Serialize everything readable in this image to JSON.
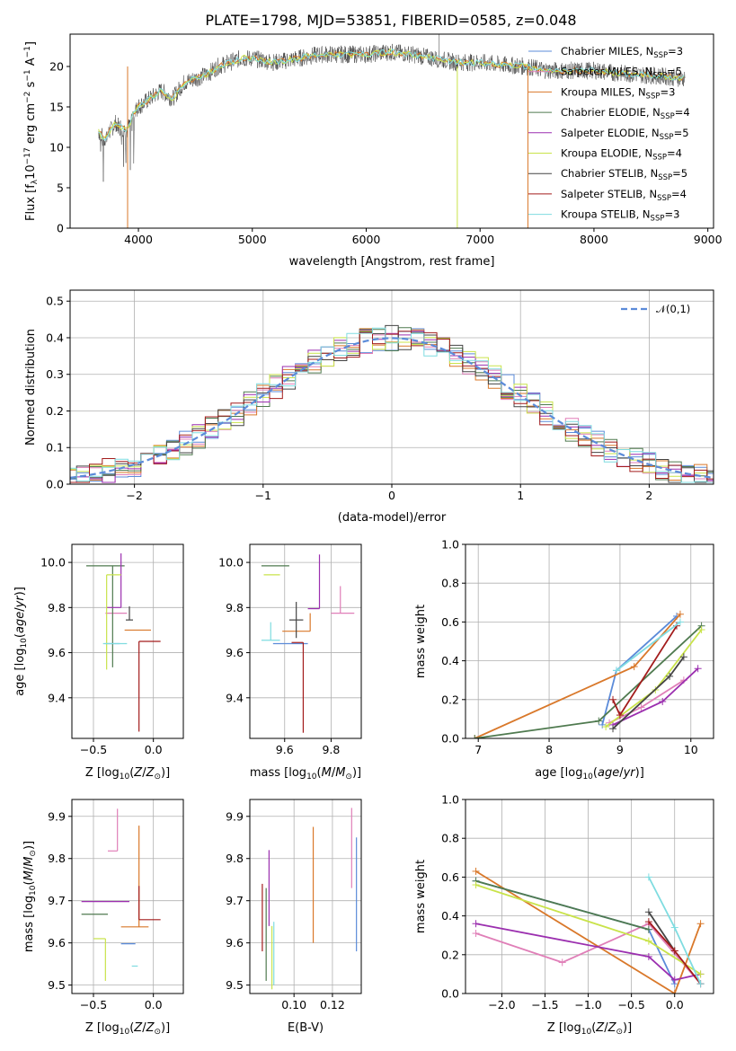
{
  "colors": [
    "#5b8bd9",
    "#e07fb8",
    "#d9782a",
    "#4f7a4f",
    "#9b2faf",
    "#c9e34a",
    "#444444",
    "#a31c1c",
    "#7fdce0"
  ],
  "legend_labels": [
    {
      "base": "Chabrier MILES, N",
      "sub": "SSP",
      "end": "=3"
    },
    {
      "base": "Salpeter MILES, N",
      "sub": "SSP",
      "end": "=5"
    },
    {
      "base": "Kroupa MILES, N",
      "sub": "SSP",
      "end": "=3"
    },
    {
      "base": "Chabrier ELODIE, N",
      "sub": "SSP",
      "end": "=4"
    },
    {
      "base": "Salpeter ELODIE, N",
      "sub": "SSP",
      "end": "=5"
    },
    {
      "base": "Kroupa ELODIE, N",
      "sub": "SSP",
      "end": "=4"
    },
    {
      "base": "Chabrier STELIB, N",
      "sub": "SSP",
      "end": "=5"
    },
    {
      "base": "Salpeter STELIB, N",
      "sub": "SSP",
      "end": "=4"
    },
    {
      "base": "Kroupa STELIB, N",
      "sub": "SSP",
      "end": "=3"
    }
  ],
  "chart_data": [
    {
      "type": "line",
      "title": "PLATE=1798, MJD=53851, FIBERID=0585, z=0.048",
      "xlabel": "wavelength [Angstrom, rest frame]",
      "ylabel": "Flux [fλ10⁻¹⁷ erg cm⁻² s⁻¹ A⁻¹]",
      "xlim": [
        3400,
        9050
      ],
      "ylim": [
        0,
        24
      ],
      "xticks": [
        4000,
        5000,
        6000,
        7000,
        8000,
        9000
      ],
      "yticks": [
        0,
        5,
        10,
        15,
        20
      ],
      "spectrum_envelope": {
        "x": [
          3650,
          3700,
          3800,
          3900,
          3950,
          4000,
          4100,
          4200,
          4300,
          4400,
          4500,
          4600,
          4700,
          4800,
          4900,
          5000,
          5200,
          5400,
          5600,
          5800,
          6000,
          6200,
          6400,
          6600,
          6800,
          7000,
          7200,
          7400,
          7600,
          7800,
          8000,
          8200,
          8400,
          8600,
          8800
        ],
        "y": [
          12,
          11,
          13,
          12,
          14,
          15,
          16,
          17,
          16,
          18,
          18.5,
          19,
          20,
          20.5,
          21,
          21,
          20.5,
          21,
          21.5,
          21.5,
          21.5,
          21.8,
          21.5,
          21,
          20.5,
          20.5,
          20.2,
          20,
          19.5,
          19.5,
          19.5,
          19.2,
          19,
          18.8,
          18.5
        ]
      },
      "legend_position": "upper-right"
    },
    {
      "type": "histogram",
      "xlabel": "(data-model)/error",
      "ylabel": "Normed distribution",
      "xlim": [
        -2.5,
        2.5
      ],
      "ylim": [
        0,
        0.53
      ],
      "xticks": [
        -2,
        -1,
        0,
        1,
        2
      ],
      "yticks": [
        0.0,
        0.1,
        0.2,
        0.3,
        0.4,
        0.5
      ],
      "reference_curve": {
        "name": "𝒩(0,1)",
        "mean": 0,
        "sigma": 1
      },
      "bin_width": 0.1,
      "legend_position": "upper-right"
    },
    {
      "type": "scatter",
      "xlabel": "Z [log10(Z/Z⊙)]",
      "ylabel": "age  [log10(age/yr)]",
      "xlim": [
        -0.68,
        0.25
      ],
      "ylim": [
        9.22,
        10.08
      ],
      "xticks": [
        -0.5,
        0.0
      ],
      "yticks": [
        9.4,
        9.6,
        9.8,
        10.0
      ],
      "points": [
        {
          "x": -0.28,
          "y": 9.64,
          "xerr": [
            0.12,
            0.0
          ],
          "yerr": [
            0.0,
            0.0
          ]
        },
        {
          "x": -0.26,
          "y": 9.775,
          "xerr": [
            0.12,
            0.08
          ],
          "yerr": [
            0.0,
            0.0
          ]
        },
        {
          "x": -0.14,
          "y": 9.7,
          "xerr": [
            0.1,
            0.12
          ],
          "yerr": [
            0.0,
            0.0
          ]
        },
        {
          "x": -0.34,
          "y": 9.985,
          "xerr": [
            0.22,
            0.0
          ],
          "yerr": [
            0.0,
            0.0
          ]
        },
        {
          "x": -0.27,
          "y": 9.8,
          "xerr": [
            0.12,
            0.0
          ],
          "yerr": [
            0.0,
            0.0
          ]
        },
        {
          "x": -0.27,
          "y": 9.945,
          "xerr": [
            0.12,
            0.1
          ],
          "yerr": [
            0.0,
            0.0
          ]
        },
        {
          "x": -0.18,
          "y": 9.745,
          "xerr": [
            0.03,
            0.03
          ],
          "yerr": [
            0.0,
            0.0
          ]
        },
        {
          "x": -0.12,
          "y": 9.65,
          "xerr": [
            0.0,
            0.0
          ],
          "yerr": [
            0.0,
            0.0
          ]
        },
        {
          "x": -0.22,
          "y": 9.64,
          "xerr": [
            0.0,
            0.0
          ],
          "yerr": [
            0.0,
            0.0
          ]
        }
      ]
    },
    {
      "type": "scatter",
      "xlabel": "mass [log10(M/M⊙)]",
      "ylabel": "",
      "xlim": [
        9.45,
        9.93
      ],
      "ylim": [
        9.22,
        10.08
      ],
      "xticks": [
        9.6,
        9.8
      ],
      "yticks": [
        9.4,
        9.6,
        9.8,
        10.0
      ]
    },
    {
      "type": "line",
      "xlabel": "age  [log10(age/yr)]",
      "ylabel": "mass weight",
      "xlim": [
        6.82,
        10.32
      ],
      "ylim": [
        0,
        1
      ],
      "xticks": [
        7,
        8,
        9,
        10
      ],
      "yticks": [
        0.0,
        0.2,
        0.4,
        0.6,
        0.8,
        1.0
      ]
    },
    {
      "type": "scatter",
      "xlabel": "Z [log10(Z/Z⊙)]",
      "ylabel": "mass [log10(M/M⊙)]",
      "xlim": [
        -0.68,
        0.25
      ],
      "ylim": [
        9.48,
        9.94
      ],
      "xticks": [
        -0.5,
        0.0
      ],
      "yticks": [
        9.5,
        9.6,
        9.7,
        9.8,
        9.9
      ]
    },
    {
      "type": "scatter",
      "xlabel": "E(B-V)",
      "ylabel": "",
      "xlim": [
        0.077,
        0.135
      ],
      "ylim": [
        9.48,
        9.94
      ],
      "xticks": [
        0.1,
        0.12
      ],
      "yticks": [
        9.5,
        9.6,
        9.7,
        9.8,
        9.9
      ]
    },
    {
      "type": "line",
      "xlabel": "Z [log10(Z/Z⊙)]",
      "ylabel": "mass weight",
      "xlim": [
        -2.42,
        0.45
      ],
      "ylim": [
        0,
        1
      ],
      "xticks": [
        -2.0,
        -1.5,
        -1.0,
        -0.5,
        0.0
      ],
      "yticks": [
        0.0,
        0.2,
        0.4,
        0.6,
        0.8,
        1.0
      ]
    }
  ]
}
